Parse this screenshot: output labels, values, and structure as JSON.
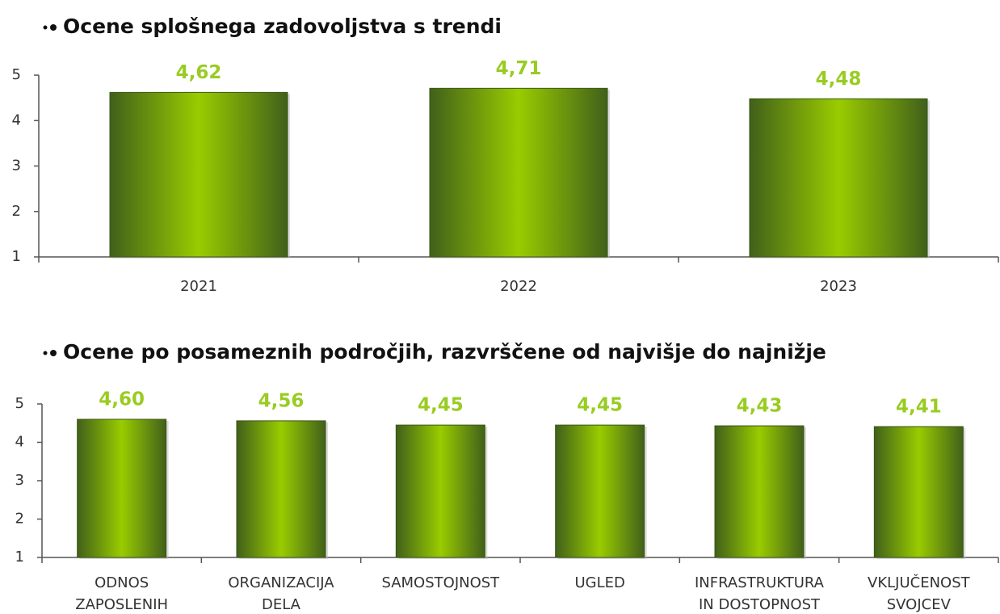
{
  "chart_data": [
    {
      "type": "bar",
      "title": "Ocene splošnega zadovoljstva s trendi",
      "categories": [
        [
          "2021"
        ],
        [
          "2022"
        ],
        [
          "2023"
        ]
      ],
      "values": [
        4.62,
        4.71,
        4.48
      ],
      "value_labels": [
        "4,62",
        "4,71",
        "4,48"
      ],
      "ylim": [
        1,
        5
      ],
      "yticks": [
        1,
        2,
        3,
        4,
        5
      ],
      "color": "#99cc00"
    },
    {
      "type": "bar",
      "title": "Ocene po posameznih področjih, razvrščene od najvišje do najnižje",
      "categories": [
        [
          "ODNOS",
          "ZAPOSLENIH"
        ],
        [
          "ORGANIZACIJA",
          "DELA"
        ],
        [
          "SAMOSTOJNOST"
        ],
        [
          "UGLED"
        ],
        [
          "INFRASTRUKTURA",
          "IN DOSTOPNOST"
        ],
        [
          "VKLJUČENOST",
          "SVOJCEV"
        ]
      ],
      "values": [
        4.6,
        4.56,
        4.45,
        4.45,
        4.43,
        4.41
      ],
      "value_labels": [
        "4,60",
        "4,56",
        "4,45",
        "4,45",
        "4,43",
        "4,41"
      ],
      "ylim": [
        1,
        5
      ],
      "yticks": [
        1,
        2,
        3,
        4,
        5
      ],
      "color": "#99cc00"
    }
  ]
}
